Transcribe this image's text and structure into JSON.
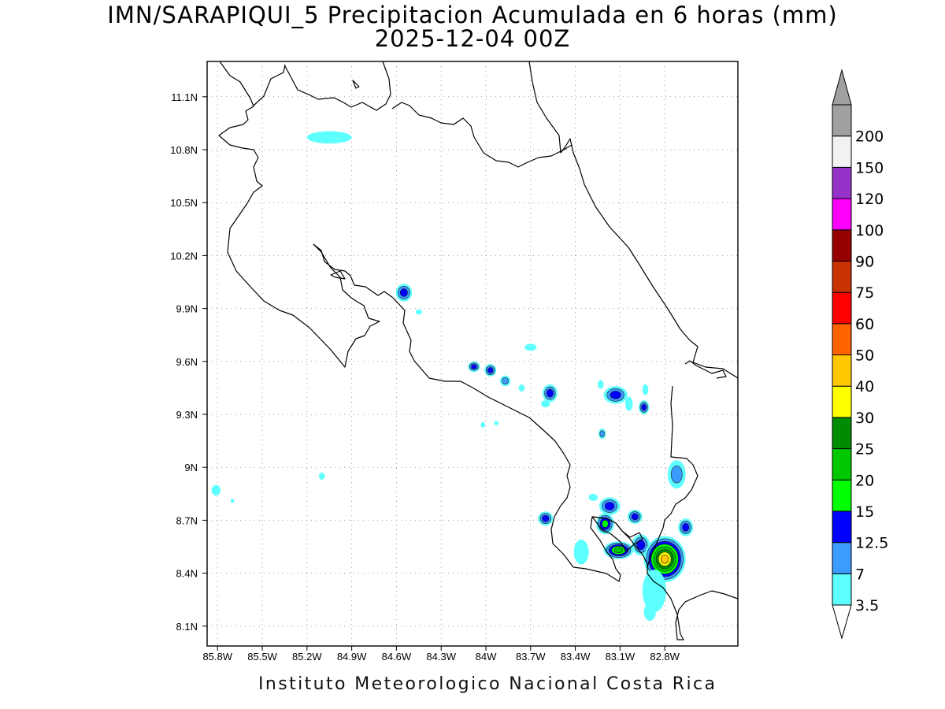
{
  "title_line1": "IMN/SARAPIQUI_5 Precipitacion Acumulada en 6 horas (mm)",
  "title_line2": "2025-12-04 00Z",
  "footer": "Instituto Meteorologico Nacional Costa Rica",
  "lat_labels": [
    "11.1N",
    "10.8N",
    "10.5N",
    "10.2N",
    "9.9N",
    "9.6N",
    "9.3N",
    "9N",
    "8.7N",
    "8.4N",
    "8.1N"
  ],
  "lon_labels": [
    "85.8W",
    "85.5W",
    "85.2W",
    "84.9W",
    "84.6W",
    "84.3W",
    "84W",
    "83.7W",
    "83.4W",
    "83.1W",
    "82.8W"
  ],
  "colorbar": {
    "labels": [
      "3.5",
      "7",
      "12.5",
      "15",
      "20",
      "25",
      "30",
      "40",
      "50",
      "60",
      "75",
      "90",
      "100",
      "120",
      "150",
      "200"
    ],
    "colors": [
      "#5effff",
      "#3c9bff",
      "#0000ff",
      "#00ff00",
      "#00c800",
      "#008c00",
      "#ffff00",
      "#ffc800",
      "#ff6400",
      "#ff0000",
      "#c83200",
      "#960000",
      "#ff00ff",
      "#9632c8",
      "#f2f2f2",
      "#a0a0a0"
    ]
  },
  "precip_cells": [
    {
      "lon": -85.05,
      "lat": 10.87,
      "rx": 0.15,
      "ry": 0.035,
      "level": 0
    },
    {
      "lon": -84.55,
      "lat": 9.99,
      "rx": 0.055,
      "ry": 0.05,
      "level": 2
    },
    {
      "lon": -84.45,
      "lat": 9.88,
      "rx": 0.02,
      "ry": 0.015,
      "level": 0
    },
    {
      "lon": -84.08,
      "lat": 9.57,
      "rx": 0.04,
      "ry": 0.03,
      "level": 2
    },
    {
      "lon": -83.97,
      "lat": 9.55,
      "rx": 0.04,
      "ry": 0.035,
      "level": 2
    },
    {
      "lon": -83.87,
      "lat": 9.49,
      "rx": 0.035,
      "ry": 0.03,
      "level": 1
    },
    {
      "lon": -83.7,
      "lat": 9.68,
      "rx": 0.04,
      "ry": 0.02,
      "level": 0
    },
    {
      "lon": -83.76,
      "lat": 9.45,
      "rx": 0.02,
      "ry": 0.02,
      "level": 0
    },
    {
      "lon": -83.57,
      "lat": 9.42,
      "rx": 0.05,
      "ry": 0.05,
      "level": 2
    },
    {
      "lon": -83.6,
      "lat": 9.36,
      "rx": 0.03,
      "ry": 0.02,
      "level": 0
    },
    {
      "lon": -84.02,
      "lat": 9.24,
      "rx": 0.015,
      "ry": 0.015,
      "level": 0
    },
    {
      "lon": -83.93,
      "lat": 9.25,
      "rx": 0.015,
      "ry": 0.012,
      "level": 0
    },
    {
      "lon": -83.13,
      "lat": 9.41,
      "rx": 0.08,
      "ry": 0.05,
      "level": 2
    },
    {
      "lon": -83.04,
      "lat": 9.36,
      "rx": 0.025,
      "ry": 0.04,
      "level": 0
    },
    {
      "lon": -82.94,
      "lat": 9.34,
      "rx": 0.035,
      "ry": 0.04,
      "level": 2
    },
    {
      "lon": -83.22,
      "lat": 9.19,
      "rx": 0.025,
      "ry": 0.03,
      "level": 1
    },
    {
      "lon": -83.23,
      "lat": 9.47,
      "rx": 0.02,
      "ry": 0.025,
      "level": 0
    },
    {
      "lon": -82.93,
      "lat": 9.44,
      "rx": 0.02,
      "ry": 0.03,
      "level": 0
    },
    {
      "lon": -82.72,
      "lat": 8.96,
      "rx": 0.06,
      "ry": 0.08,
      "level": 1
    },
    {
      "lon": -85.81,
      "lat": 8.87,
      "rx": 0.03,
      "ry": 0.03,
      "level": 0
    },
    {
      "lon": -85.7,
      "lat": 8.81,
      "rx": 0.012,
      "ry": 0.012,
      "level": 0
    },
    {
      "lon": -85.1,
      "lat": 8.95,
      "rx": 0.02,
      "ry": 0.02,
      "level": 0
    },
    {
      "lon": -83.6,
      "lat": 8.71,
      "rx": 0.05,
      "ry": 0.04,
      "level": 2
    },
    {
      "lon": -83.17,
      "lat": 8.78,
      "rx": 0.07,
      "ry": 0.05,
      "level": 2
    },
    {
      "lon": -83.2,
      "lat": 8.68,
      "rx": 0.06,
      "ry": 0.06,
      "level": 3
    },
    {
      "lon": -83.28,
      "lat": 8.83,
      "rx": 0.03,
      "ry": 0.02,
      "level": 0
    },
    {
      "lon": -83.0,
      "lat": 8.72,
      "rx": 0.05,
      "ry": 0.04,
      "level": 2
    },
    {
      "lon": -83.11,
      "lat": 8.53,
      "rx": 0.1,
      "ry": 0.05,
      "level": 4
    },
    {
      "lon": -82.96,
      "lat": 8.56,
      "rx": 0.06,
      "ry": 0.06,
      "level": 2
    },
    {
      "lon": -83.36,
      "lat": 8.52,
      "rx": 0.05,
      "ry": 0.07,
      "level": 0
    },
    {
      "lon": -82.8,
      "lat": 8.48,
      "rx": 0.14,
      "ry": 0.13,
      "level": 7
    },
    {
      "lon": -82.87,
      "lat": 8.3,
      "rx": 0.08,
      "ry": 0.12,
      "level": 0
    },
    {
      "lon": -82.66,
      "lat": 8.66,
      "rx": 0.05,
      "ry": 0.05,
      "level": 2
    },
    {
      "lon": -82.9,
      "lat": 8.18,
      "rx": 0.04,
      "ry": 0.05,
      "level": 0
    }
  ]
}
